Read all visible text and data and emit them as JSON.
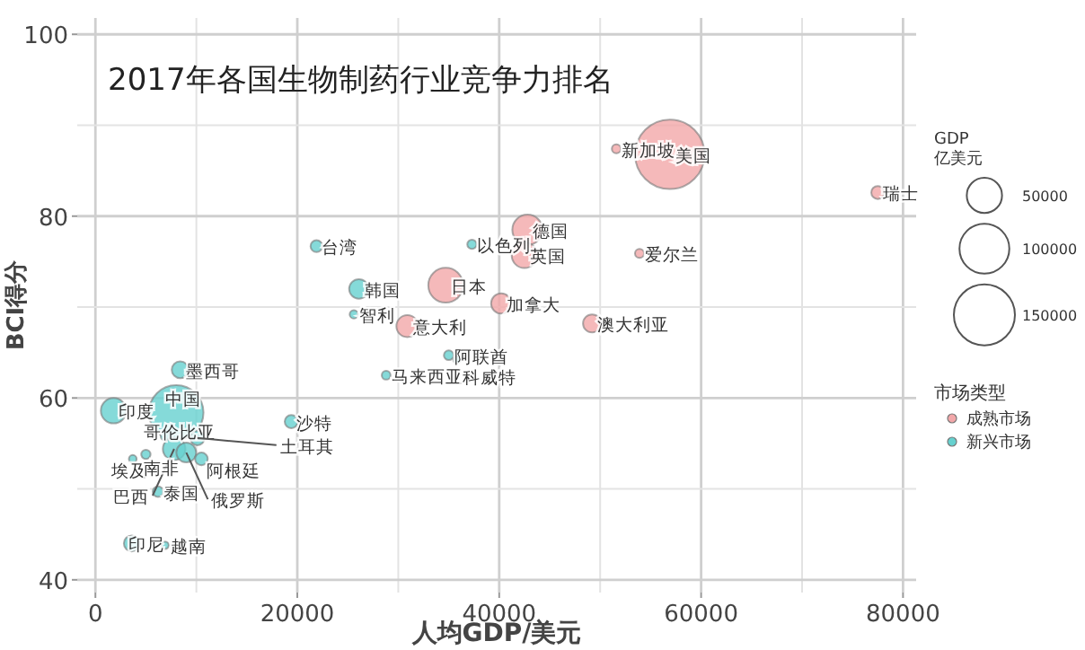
{
  "chart_data": {
    "type": "bubble",
    "title": "2017年各国生物制药行业竞争力排名",
    "xlabel": "人均GDP/美元",
    "ylabel": "BCI得分",
    "legend_title": "市场类型",
    "legend": "right",
    "grid": true,
    "xlim": [
      -1800,
      81300
    ],
    "ylim": [
      38.6,
      101.8
    ],
    "xticks": [
      0,
      20000,
      40000,
      60000,
      80000
    ],
    "yticks": [
      40,
      60,
      80,
      100
    ],
    "size_legend": [
      50000,
      100000,
      150000
    ],
    "series": [
      {
        "name": "成熟市场",
        "color": "#f2a7a9",
        "x": [
          56900,
          51600,
          77500,
          42800,
          42500,
          53900,
          34700,
          40200,
          49200,
          30900
        ],
        "values": [
          86.8,
          87.4,
          82.6,
          78.5,
          75.7,
          75.9,
          72.4,
          70.4,
          68.2,
          67.9
        ],
        "sizes": [
          194000,
          3200,
          6800,
          36800,
          26200,
          3300,
          48700,
          16500,
          13200,
          19300
        ]
      },
      {
        "name": "新兴市场",
        "color": "#66d1cf",
        "x": [
          37300,
          21900,
          26100,
          25600,
          28800,
          35000,
          35800,
          8400,
          1800,
          8000,
          19400,
          6900,
          7800,
          9000,
          10100,
          10500,
          3700,
          5000,
          6200,
          3600,
          6900
        ],
        "values": [
          76.9,
          76.7,
          72.0,
          69.2,
          62.5,
          64.7,
          64.2,
          63.1,
          58.6,
          58.4,
          57.4,
          55.8,
          54.4,
          54.0,
          55.6,
          53.3,
          53.3,
          53.8,
          49.7,
          44.0,
          43.8
        ],
        "sizes": [
          3500,
          5700,
          15300,
          2800,
          3100,
          3800,
          1200,
          11500,
          26000,
          120000,
          6900,
          3100,
          20500,
          15800,
          8500,
          6400,
          2400,
          3500,
          4500,
          10100,
          2200
        ]
      }
    ],
    "annotations": [
      {
        "text": "美国",
        "x": 56900,
        "y": 86.8
      },
      {
        "text": "新加坡",
        "x": 51600,
        "y": 87.4
      },
      {
        "text": "瑞士",
        "x": 77500,
        "y": 82.6
      },
      {
        "text": "德国",
        "x": 42800,
        "y": 78.5
      },
      {
        "text": "英国",
        "x": 42500,
        "y": 75.7
      },
      {
        "text": "爱尔兰",
        "x": 53900,
        "y": 75.9
      },
      {
        "text": "日本",
        "x": 34700,
        "y": 72.4
      },
      {
        "text": "加拿大",
        "x": 40200,
        "y": 70.4
      },
      {
        "text": "澳大利亚",
        "x": 49200,
        "y": 68.2
      },
      {
        "text": "意大利",
        "x": 30900,
        "y": 67.9
      },
      {
        "text": "以色列",
        "x": 37300,
        "y": 76.9
      },
      {
        "text": "台湾",
        "x": 21900,
        "y": 76.7
      },
      {
        "text": "韩国",
        "x": 26100,
        "y": 72.0
      },
      {
        "text": "智利",
        "x": 25600,
        "y": 69.2
      },
      {
        "text": "马来西亚",
        "x": 28800,
        "y": 62.5
      },
      {
        "text": "阿联酋",
        "x": 35000,
        "y": 64.7
      },
      {
        "text": "科威特",
        "x": 35800,
        "y": 64.2
      },
      {
        "text": "墨西哥",
        "x": 8400,
        "y": 63.1
      },
      {
        "text": "印度",
        "x": 1800,
        "y": 58.6
      },
      {
        "text": "中国",
        "x": 8000,
        "y": 58.4
      },
      {
        "text": "沙特",
        "x": 19400,
        "y": 57.4
      },
      {
        "text": "哥伦比亚",
        "x": 6900,
        "y": 55.8
      },
      {
        "text": "巴西",
        "x": 7800,
        "y": 54.4
      },
      {
        "text": "俄罗斯",
        "x": 9000,
        "y": 54.0
      },
      {
        "text": "土耳其",
        "x": 10100,
        "y": 55.6
      },
      {
        "text": "阿根廷",
        "x": 10500,
        "y": 53.3
      },
      {
        "text": "埃及",
        "x": 3700,
        "y": 53.3
      },
      {
        "text": "南非",
        "x": 5000,
        "y": 53.8
      },
      {
        "text": "泰国",
        "x": 6200,
        "y": 49.7
      },
      {
        "text": "印尼",
        "x": 3600,
        "y": 44.0
      },
      {
        "text": "越南",
        "x": 6900,
        "y": 43.8
      },
      "GDP\n亿美元"
    ]
  }
}
